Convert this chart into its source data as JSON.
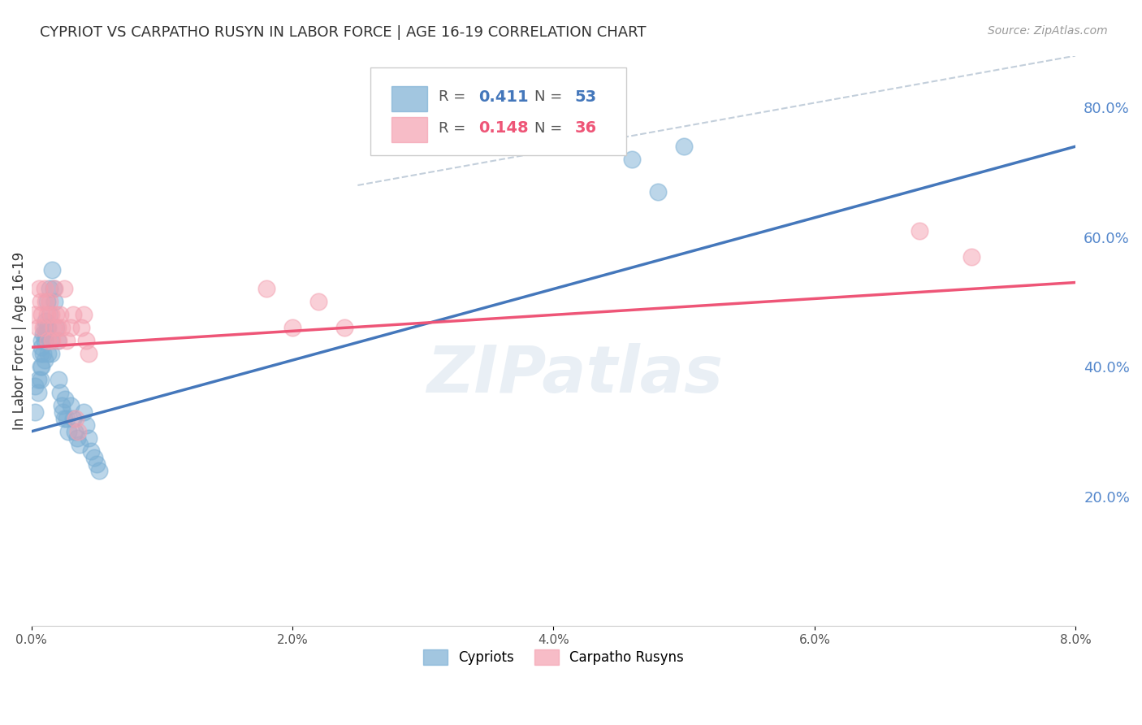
{
  "title": "CYPRIOT VS CARPATHO RUSYN IN LABOR FORCE | AGE 16-19 CORRELATION CHART",
  "source": "Source: ZipAtlas.com",
  "ylabel": "In Labor Force | Age 16-19",
  "xlim": [
    0.0,
    0.08
  ],
  "ylim": [
    0.0,
    0.88
  ],
  "xticks": [
    0.0,
    0.02,
    0.04,
    0.06,
    0.08
  ],
  "xtick_labels": [
    "0.0%",
    "2.0%",
    "4.0%",
    "6.0%",
    "8.0%"
  ],
  "ytick_labels_right": [
    "20.0%",
    "40.0%",
    "60.0%",
    "80.0%"
  ],
  "ytick_vals_right": [
    0.2,
    0.4,
    0.6,
    0.8
  ],
  "blue_color": "#7BAFD4",
  "pink_color": "#F4A0B0",
  "blue_line_color": "#4477BB",
  "pink_line_color": "#EE5577",
  "blue_R": 0.411,
  "blue_N": 53,
  "pink_R": 0.148,
  "pink_N": 36,
  "blue_scatter_x": [
    0.0003,
    0.0003,
    0.0005,
    0.0005,
    0.0007,
    0.0007,
    0.0007,
    0.0008,
    0.0008,
    0.0008,
    0.0009,
    0.0009,
    0.001,
    0.001,
    0.001,
    0.0011,
    0.0011,
    0.0012,
    0.0012,
    0.0013,
    0.0013,
    0.0014,
    0.0014,
    0.0015,
    0.0015,
    0.0016,
    0.0017,
    0.0018,
    0.0019,
    0.002,
    0.0021,
    0.0022,
    0.0023,
    0.0024,
    0.0025,
    0.0026,
    0.0027,
    0.0028,
    0.003,
    0.0032,
    0.0033,
    0.0035,
    0.0037,
    0.004,
    0.0042,
    0.0044,
    0.0046,
    0.0048,
    0.005,
    0.0052,
    0.046,
    0.048,
    0.05
  ],
  "blue_scatter_y": [
    0.37,
    0.33,
    0.38,
    0.36,
    0.42,
    0.4,
    0.38,
    0.44,
    0.43,
    0.4,
    0.45,
    0.42,
    0.46,
    0.44,
    0.41,
    0.47,
    0.45,
    0.5,
    0.46,
    0.42,
    0.46,
    0.52,
    0.48,
    0.44,
    0.42,
    0.55,
    0.52,
    0.5,
    0.46,
    0.44,
    0.38,
    0.36,
    0.34,
    0.33,
    0.32,
    0.35,
    0.32,
    0.3,
    0.34,
    0.32,
    0.3,
    0.29,
    0.28,
    0.33,
    0.31,
    0.29,
    0.27,
    0.26,
    0.25,
    0.24,
    0.72,
    0.67,
    0.74
  ],
  "pink_scatter_x": [
    0.0003,
    0.0005,
    0.0006,
    0.0007,
    0.0008,
    0.0009,
    0.001,
    0.0011,
    0.0012,
    0.0013,
    0.0014,
    0.0015,
    0.0016,
    0.0017,
    0.0018,
    0.0019,
    0.002,
    0.0021,
    0.0022,
    0.0023,
    0.0025,
    0.0027,
    0.003,
    0.0032,
    0.0034,
    0.0036,
    0.0038,
    0.004,
    0.0042,
    0.0044,
    0.018,
    0.02,
    0.022,
    0.024,
    0.068,
    0.072
  ],
  "pink_scatter_y": [
    0.48,
    0.46,
    0.52,
    0.5,
    0.48,
    0.46,
    0.52,
    0.5,
    0.48,
    0.44,
    0.5,
    0.48,
    0.44,
    0.46,
    0.52,
    0.48,
    0.46,
    0.44,
    0.48,
    0.46,
    0.52,
    0.44,
    0.46,
    0.48,
    0.32,
    0.3,
    0.46,
    0.48,
    0.44,
    0.42,
    0.52,
    0.46,
    0.5,
    0.46,
    0.61,
    0.57
  ],
  "blue_line_x": [
    0.0,
    0.08
  ],
  "blue_line_y": [
    0.3,
    0.74
  ],
  "pink_line_x": [
    0.0,
    0.08
  ],
  "pink_line_y": [
    0.43,
    0.53
  ],
  "diag_line_x": [
    0.025,
    0.08
  ],
  "diag_line_y": [
    0.68,
    0.88
  ],
  "watermark": "ZIPatlas",
  "background_color": "#ffffff",
  "grid_color": "#cccccc",
  "title_fontsize": 13,
  "axis_label_fontsize": 12,
  "tick_fontsize": 11,
  "right_tick_color": "#5588CC"
}
